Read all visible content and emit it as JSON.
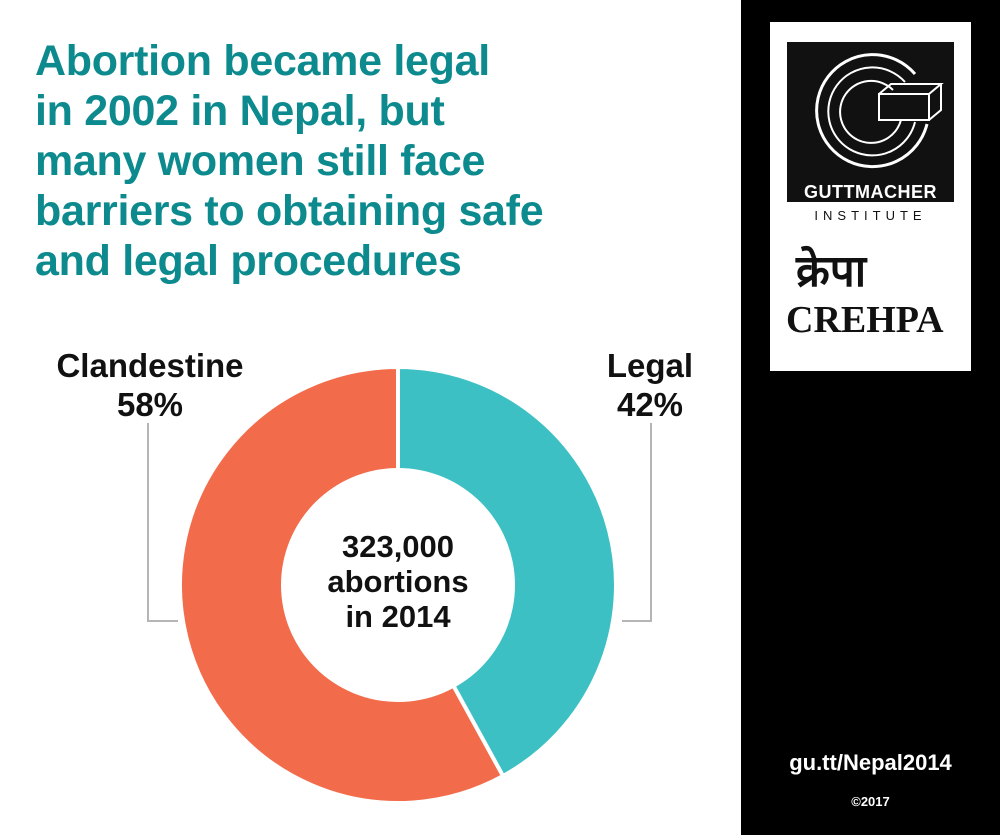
{
  "title_lines": [
    "Abortion became legal",
    "in 2002 in Nepal, but",
    "many women still face",
    "barriers to obtaining safe",
    "and legal procedures"
  ],
  "chart_data": {
    "type": "pie",
    "style": "donut",
    "slices": [
      {
        "label": "Legal",
        "value": 42,
        "value_label": "42%",
        "color": "#3cc0c3"
      },
      {
        "label": "Clandestine",
        "value": 58,
        "value_label": "58%",
        "color": "#f26b4a"
      }
    ],
    "center_lines": [
      "323,000",
      "abortions",
      "in 2014"
    ]
  },
  "sidebar": {
    "guttmacher_name": "GUTTMACHER",
    "guttmacher_sub": "INSTITUTE",
    "crehpa_script": "क्रेपा",
    "crehpa_name": "CREHPA",
    "link": "gu.tt/Nepal2014",
    "copyright": "©2017"
  }
}
